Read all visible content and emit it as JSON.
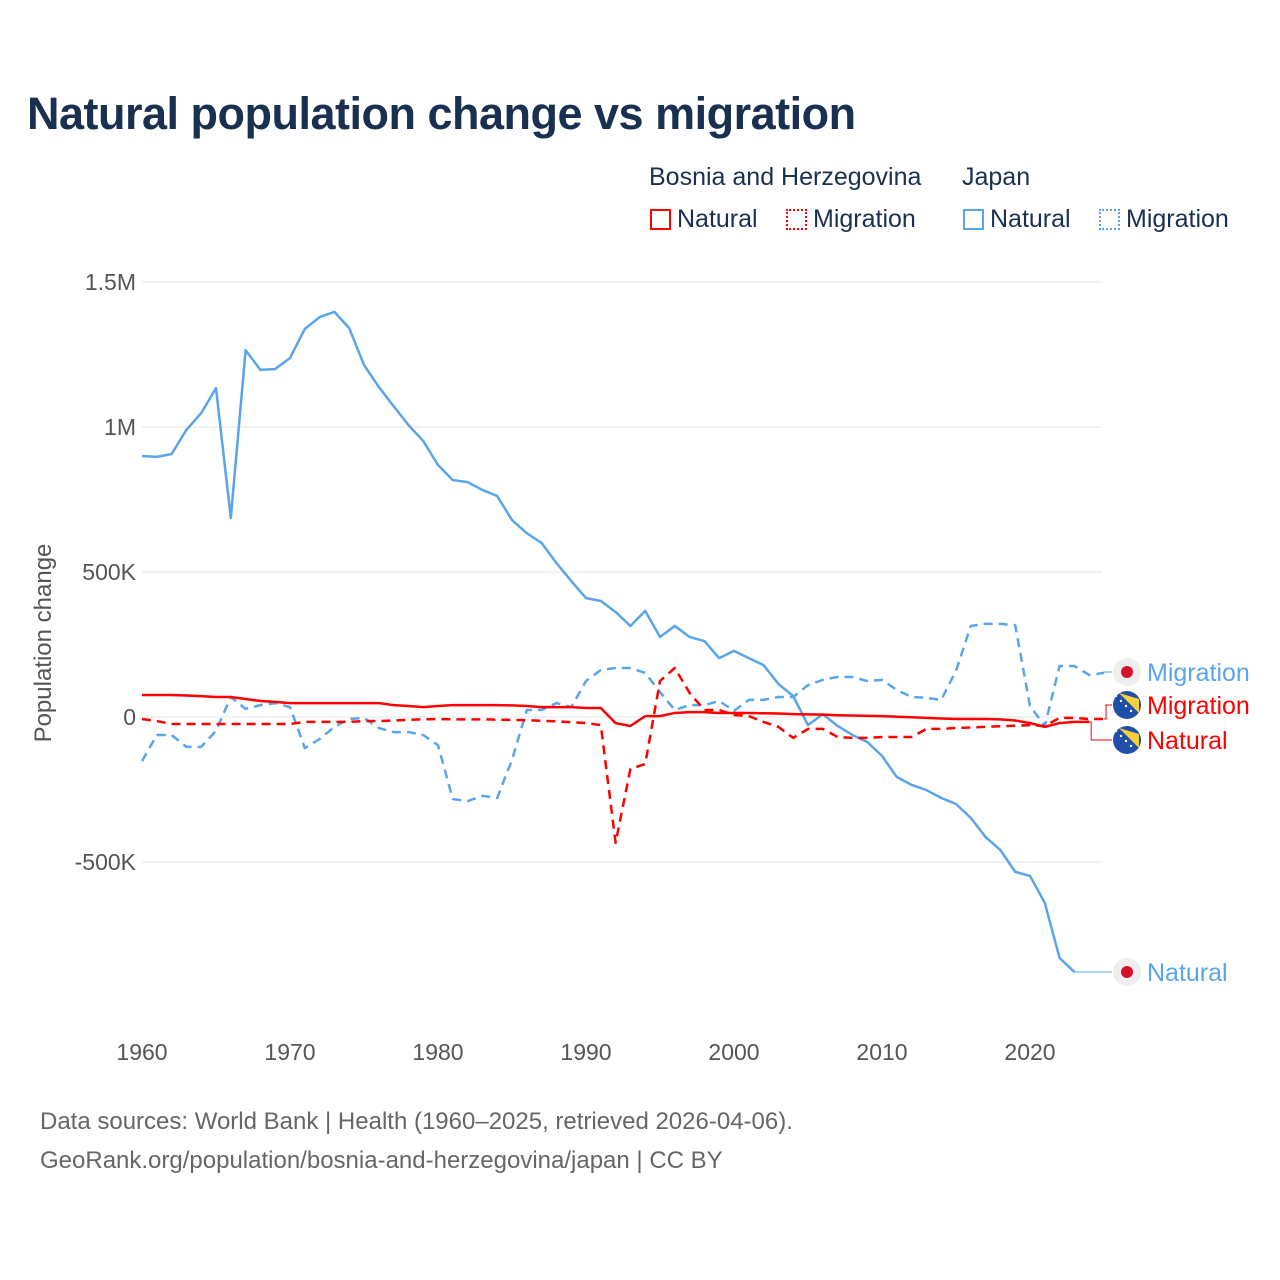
{
  "title": "Natural population change vs migration",
  "legend": {
    "groups": [
      {
        "name": "Bosnia and Herzegovina",
        "items": [
          {
            "label": "Natural",
            "style": "solid"
          },
          {
            "label": "Migration",
            "style": "dashed"
          }
        ],
        "color": "#ff0000"
      },
      {
        "name": "Japan",
        "items": [
          {
            "label": "Natural",
            "style": "solid"
          },
          {
            "label": "Migration",
            "style": "dashed"
          }
        ],
        "color": "#5aa5e9"
      }
    ]
  },
  "footer": {
    "line1": "Data sources: World Bank | Health (1960–2025, retrieved 2026-04-06).",
    "line2": "GeoRank.org/population/bosnia-and-herzegovina/japan | CC BY"
  },
  "chart_data": {
    "type": "line",
    "title": "Natural population change vs migration",
    "xlabel": "",
    "ylabel": "Population change",
    "xlim": [
      1960,
      2025
    ],
    "ylim": [
      -1000000,
      1500000
    ],
    "xticks": [
      1960,
      1970,
      1980,
      1990,
      2000,
      2010,
      2020
    ],
    "xtick_labels": [
      "1960",
      "1970",
      "1980",
      "1990",
      "2000",
      "2010",
      "2020"
    ],
    "yticks": [
      -500000,
      0,
      500000,
      1000000,
      1500000
    ],
    "ytick_labels": [
      "-500K",
      "0",
      "500K",
      "1M",
      "1.5M"
    ],
    "grid": true,
    "legend_position": "top-right",
    "series": [
      {
        "name": "Japan Natural",
        "end_label": "Natural",
        "color": "#5aa5e9",
        "dash": false,
        "start": 1960,
        "values": [
          900,
          897,
          907,
          990,
          1048,
          1134,
          686,
          1265,
          1197,
          1200,
          1238,
          1338,
          1379,
          1397,
          1341,
          1214,
          1138,
          1072,
          1007,
          952,
          869,
          817,
          810,
          783,
          762,
          679,
          634,
          600,
          531,
          469,
          410,
          400,
          362,
          314,
          366,
          276,
          314,
          276,
          262,
          203,
          228,
          203,
          179,
          114,
          72,
          -28,
          10,
          -31,
          -62,
          -86,
          -134,
          -207,
          -234,
          -252,
          -279,
          -300,
          -348,
          -414,
          -459,
          -534,
          -548,
          -641,
          -831,
          -879
        ]
      },
      {
        "name": "Japan Migration",
        "end_label": "Migration",
        "color": "#5aa5e9",
        "dash": true,
        "start": 1960,
        "values": [
          -152,
          -62,
          -62,
          -103,
          -103,
          -48,
          69,
          28,
          41,
          48,
          34,
          -107,
          -76,
          -34,
          -7,
          -3,
          -38,
          -52,
          -52,
          -62,
          -97,
          -283,
          -290,
          -272,
          -279,
          -148,
          24,
          24,
          48,
          34,
          124,
          162,
          169,
          169,
          152,
          86,
          24,
          41,
          41,
          55,
          21,
          59,
          59,
          69,
          69,
          110,
          128,
          138,
          138,
          124,
          128,
          93,
          69,
          66,
          59,
          159,
          314,
          321,
          321,
          317,
          38,
          -31,
          176,
          176,
          145,
          152
        ]
      },
      {
        "name": "Bosnia and Herzegovina Migration",
        "end_label": "Migration",
        "color": "#ff0000",
        "dash": true,
        "start": 1960,
        "values": [
          -7,
          -14,
          -24,
          -24,
          -24,
          -24,
          -24,
          -24,
          -24,
          -24,
          -24,
          -17,
          -17,
          -17,
          -17,
          -14,
          -14,
          -12,
          -10,
          -8,
          -7,
          -8,
          -8,
          -8,
          -9,
          -10,
          -11,
          -13,
          -15,
          -18,
          -21,
          -28,
          -434,
          -179,
          -162,
          124,
          169,
          83,
          24,
          24,
          7,
          3,
          -17,
          -34,
          -72,
          -41,
          -41,
          -69,
          -72,
          -72,
          -69,
          -69,
          -69,
          -41,
          -41,
          -38,
          -36,
          -34,
          -32,
          -30,
          -28,
          -31,
          -3,
          -3,
          -7,
          -7
        ]
      },
      {
        "name": "Bosnia and Herzegovina Natural",
        "end_label": "Natural",
        "color": "#ff0000",
        "dash": false,
        "start": 1960,
        "values": [
          76,
          76,
          76,
          74,
          72,
          69,
          69,
          62,
          55,
          52,
          48,
          48,
          48,
          48,
          48,
          48,
          48,
          41,
          38,
          34,
          38,
          41,
          41,
          41,
          41,
          40,
          38,
          34,
          34,
          34,
          31,
          31,
          -21,
          -31,
          3,
          3,
          14,
          17,
          17,
          14,
          14,
          14,
          13,
          12,
          10,
          9,
          8,
          6,
          5,
          4,
          3,
          1,
          -1,
          -3,
          -5,
          -7,
          -7,
          -7,
          -8,
          -12,
          -21,
          -34,
          -21,
          -17,
          -17
        ]
      }
    ],
    "units": "thousands"
  }
}
